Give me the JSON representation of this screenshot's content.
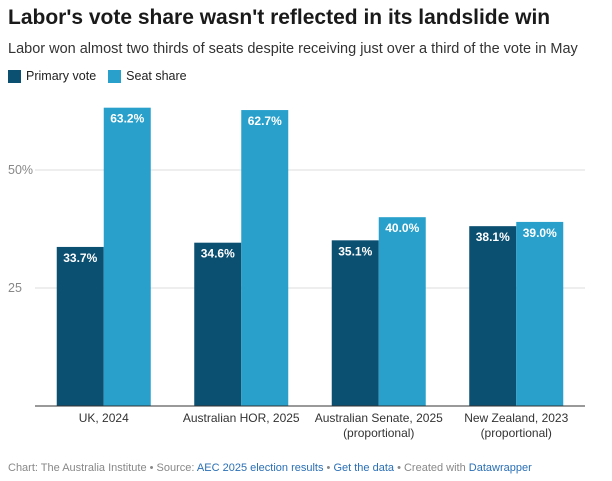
{
  "header": {
    "title": "Labor's vote share wasn't reflected in its landslide win",
    "subtitle": "Labor won almost two thirds of seats despite receiving just over a third of the vote in May"
  },
  "colors": {
    "primary": "#0b4f71",
    "seat": "#28a0cb",
    "grid": "#dddddd",
    "axis": "#333333"
  },
  "chart_data": {
    "type": "bar",
    "title": "Labor's vote share wasn't reflected in its landslide win",
    "subtitle": "Labor won almost two thirds of seats despite receiving just over a third of the vote in May",
    "categories": [
      [
        "UK, 2024"
      ],
      [
        "Australian HOR, 2025"
      ],
      [
        "Australian Senate, 2025",
        "(proportional)"
      ],
      [
        "New Zealand, 2023",
        "(proportional)"
      ]
    ],
    "series": [
      {
        "name": "Primary vote",
        "values": [
          33.7,
          34.6,
          35.1,
          38.1
        ],
        "labels": [
          "33.7%",
          "34.6%",
          "35.1%",
          "38.1%"
        ]
      },
      {
        "name": "Seat share",
        "values": [
          63.2,
          62.7,
          40.0,
          39.0
        ],
        "labels": [
          "63.2%",
          "62.7%",
          "40.0%",
          "39.0%"
        ]
      }
    ],
    "yticks": [
      {
        "value": 25,
        "label": "25"
      },
      {
        "value": 50,
        "label": "50%"
      }
    ],
    "ylim": [
      0,
      65
    ],
    "xlabel": "",
    "ylabel": "",
    "legend": "top-left"
  },
  "footer": {
    "prefix": "Chart: The Australia Institute • Source: ",
    "source_link": "AEC 2025 election results",
    "sep1": " • ",
    "data_link": "Get the data",
    "sep2": " • Created with ",
    "tool_link": "Datawrapper"
  }
}
